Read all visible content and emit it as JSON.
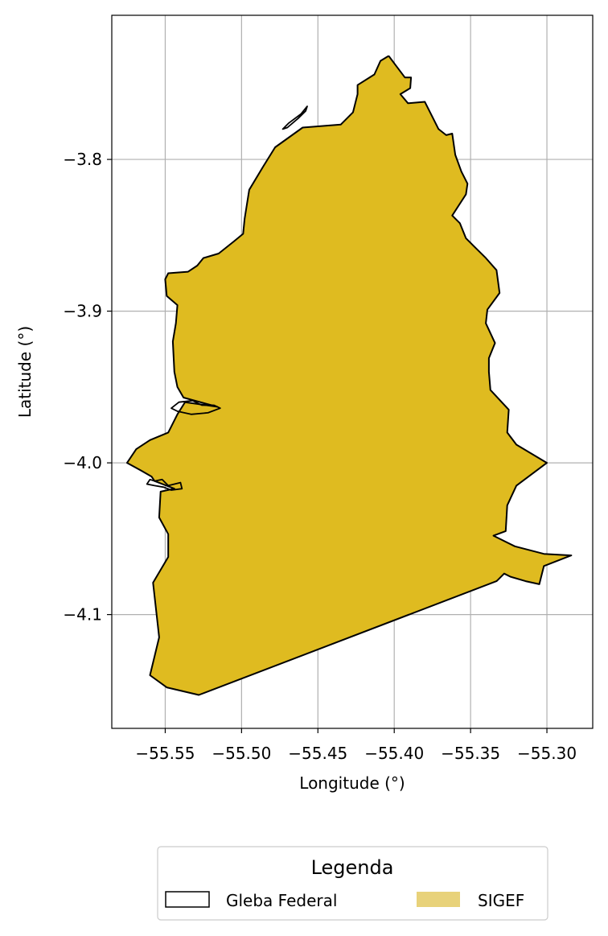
{
  "chart_data": {
    "type": "map",
    "xlabel": "Longitude (°)",
    "ylabel": "Latitude (°)",
    "xlim": [
      -55.585,
      -55.27
    ],
    "ylim": [
      -4.175,
      -3.705
    ],
    "x_ticks": [
      -55.55,
      -55.5,
      -55.45,
      -55.4,
      -55.35,
      -55.3
    ],
    "x_tick_labels": [
      "−55.55",
      "−55.50",
      "−55.45",
      "−55.40",
      "−55.35",
      "−55.30"
    ],
    "y_ticks": [
      -3.8,
      -3.9,
      -4.0,
      -4.1
    ],
    "y_tick_labels": [
      "−3.8",
      "−3.9",
      "−4.0",
      "−4.1"
    ],
    "grid": true,
    "legend": {
      "title": "Legenda",
      "placement": "bottom-center",
      "entries": [
        {
          "label": "Gleba Federal",
          "style": "outline",
          "color": "#000000"
        },
        {
          "label": "SIGEF",
          "style": "fill",
          "color": "#e8d27a"
        }
      ]
    },
    "layers": [
      {
        "name": "SIGEF",
        "fill": "#dfbb20",
        "stroke": "#000000",
        "polygon": [
          [
            -55.4035,
            -3.732
          ],
          [
            -55.399,
            -3.738
          ],
          [
            -55.393,
            -3.746
          ],
          [
            -55.389,
            -3.746
          ],
          [
            -55.3895,
            -3.753
          ],
          [
            -55.396,
            -3.757
          ],
          [
            -55.391,
            -3.763
          ],
          [
            -55.38,
            -3.762
          ],
          [
            -55.375,
            -3.772
          ],
          [
            -55.371,
            -3.78
          ],
          [
            -55.366,
            -3.784
          ],
          [
            -55.362,
            -3.783
          ],
          [
            -55.36,
            -3.797
          ],
          [
            -55.356,
            -3.808
          ],
          [
            -55.352,
            -3.816
          ],
          [
            -55.353,
            -3.823
          ],
          [
            -55.362,
            -3.837
          ],
          [
            -55.357,
            -3.842
          ],
          [
            -55.353,
            -3.852
          ],
          [
            -55.347,
            -3.858
          ],
          [
            -55.34,
            -3.865
          ],
          [
            -55.333,
            -3.873
          ],
          [
            -55.331,
            -3.888
          ],
          [
            -55.339,
            -3.899
          ],
          [
            -55.34,
            -3.908
          ],
          [
            -55.334,
            -3.921
          ],
          [
            -55.338,
            -3.931
          ],
          [
            -55.338,
            -3.94
          ],
          [
            -55.337,
            -3.952
          ],
          [
            -55.325,
            -3.965
          ],
          [
            -55.326,
            -3.98
          ],
          [
            -55.32,
            -3.988
          ],
          [
            -55.3,
            -4.0
          ],
          [
            -55.32,
            -4.015
          ],
          [
            -55.326,
            -4.028
          ],
          [
            -55.327,
            -4.045
          ],
          [
            -55.335,
            -4.048
          ],
          [
            -55.321,
            -4.055
          ],
          [
            -55.302,
            -4.06
          ],
          [
            -55.284,
            -4.061
          ],
          [
            -55.302,
            -4.068
          ],
          [
            -55.305,
            -4.08
          ],
          [
            -55.314,
            -4.078
          ],
          [
            -55.324,
            -4.075
          ],
          [
            -55.328,
            -4.073
          ],
          [
            -55.332,
            -4.077
          ],
          [
            -55.333,
            -4.078
          ],
          [
            -55.528,
            -4.153
          ],
          [
            -55.549,
            -4.148
          ],
          [
            -55.56,
            -4.14
          ],
          [
            -55.554,
            -4.115
          ],
          [
            -55.558,
            -4.079
          ],
          [
            -55.548,
            -4.062
          ],
          [
            -55.548,
            -4.047
          ],
          [
            -55.554,
            -4.036
          ],
          [
            -55.553,
            -4.019
          ],
          [
            -55.544,
            -4.017
          ],
          [
            -55.557,
            -4.012
          ],
          [
            -55.559,
            -4.009
          ],
          [
            -55.566,
            -4.005
          ],
          [
            -55.575,
            -4.0
          ],
          [
            -55.569,
            -3.991
          ],
          [
            -55.56,
            -3.985
          ],
          [
            -55.548,
            -3.98
          ],
          [
            -55.542,
            -3.968
          ],
          [
            -55.537,
            -3.96
          ],
          [
            -55.516,
            -3.963
          ],
          [
            -55.538,
            -3.957
          ],
          [
            -55.542,
            -3.95
          ],
          [
            -55.544,
            -3.94
          ],
          [
            -55.545,
            -3.92
          ],
          [
            -55.543,
            -3.908
          ],
          [
            -55.542,
            -3.896
          ],
          [
            -55.549,
            -3.89
          ],
          [
            -55.55,
            -3.879
          ],
          [
            -55.548,
            -3.875
          ],
          [
            -55.535,
            -3.874
          ],
          [
            -55.529,
            -3.87
          ],
          [
            -55.525,
            -3.865
          ],
          [
            -55.515,
            -3.862
          ],
          [
            -55.505,
            -3.854
          ],
          [
            -55.499,
            -3.849
          ],
          [
            -55.498,
            -3.839
          ],
          [
            -55.495,
            -3.82
          ],
          [
            -55.486,
            -3.805
          ],
          [
            -55.478,
            -3.792
          ],
          [
            -55.46,
            -3.779
          ],
          [
            -55.435,
            -3.777
          ],
          [
            -55.427,
            -3.769
          ],
          [
            -55.424,
            -3.757
          ],
          [
            -55.424,
            -3.751
          ],
          [
            -55.413,
            -3.744
          ],
          [
            -55.409,
            -3.735
          ],
          [
            -55.404,
            -3.732
          ]
        ]
      },
      {
        "name": "Gleba Federal",
        "fill": "none",
        "stroke": "#000000",
        "polygon": [
          [
            -55.557,
            -4.012
          ],
          [
            -55.552,
            -4.011
          ],
          [
            -55.548,
            -4.015
          ],
          [
            -55.54,
            -4.013
          ],
          [
            -55.539,
            -4.017
          ],
          [
            -55.546,
            -4.018
          ],
          [
            -55.551,
            -4.016
          ],
          [
            -55.557,
            -4.015
          ],
          [
            -55.562,
            -4.014
          ],
          [
            -55.56,
            -4.011
          ]
        ]
      },
      {
        "name": "Gleba Federal",
        "fill": "none",
        "stroke": "#000000",
        "polygon": [
          [
            -55.457,
            -3.765
          ],
          [
            -55.461,
            -3.77
          ],
          [
            -55.469,
            -3.776
          ],
          [
            -55.473,
            -3.78
          ],
          [
            -55.47,
            -3.779
          ],
          [
            -55.463,
            -3.773
          ],
          [
            -55.458,
            -3.768
          ]
        ]
      },
      {
        "name": "Gleba Federal",
        "fill": "none",
        "stroke": "#000000",
        "polygon": [
          [
            -55.541,
            -3.96
          ],
          [
            -55.532,
            -3.959
          ],
          [
            -55.526,
            -3.962
          ],
          [
            -55.518,
            -3.962
          ],
          [
            -55.514,
            -3.964
          ],
          [
            -55.522,
            -3.967
          ],
          [
            -55.533,
            -3.968
          ],
          [
            -55.542,
            -3.966
          ],
          [
            -55.546,
            -3.964
          ]
        ]
      }
    ]
  }
}
